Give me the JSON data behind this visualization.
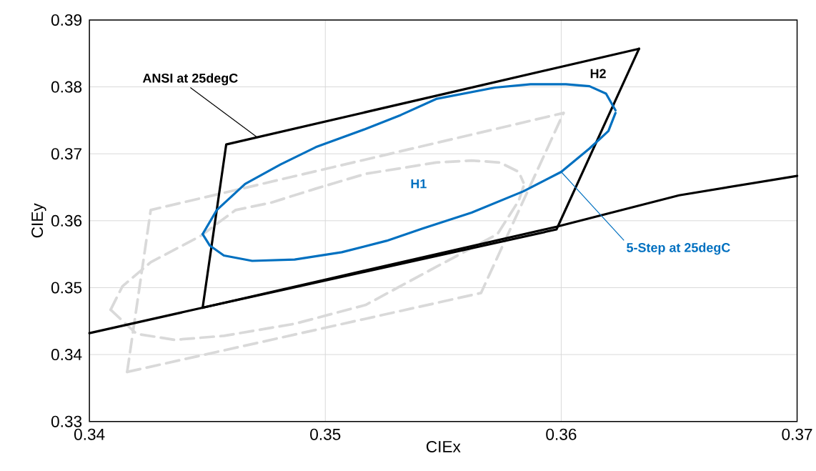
{
  "chart_data": {
    "type": "line",
    "xlabel": "CIEx",
    "ylabel": "CIEy",
    "xlim": [
      0.34,
      0.37
    ],
    "ylim": [
      0.33,
      0.39
    ],
    "xticks": [
      0.34,
      0.35,
      0.36,
      0.37
    ],
    "yticks": [
      0.33,
      0.34,
      0.35,
      0.36,
      0.37,
      0.38,
      0.39
    ],
    "grid": true,
    "series": [
      {
        "color": "#d9d9d9",
        "line_style": "dashed",
        "x": [
          0.3416,
          0.3426,
          0.3601
        ],
        "values": [
          0.3374,
          0.3616,
          0.3761
        ]
      },
      {
        "color": "#d9d9d9",
        "line_style": "dashed",
        "x": [
          0.3416,
          0.3566,
          0.3601
        ],
        "values": [
          0.3374,
          0.3492,
          0.3761
        ]
      },
      {
        "color": "#d9d9d9",
        "line_style": "dashed",
        "x": [
          0.3409,
          0.3414,
          0.3426,
          0.3447,
          0.3462,
          0.3477,
          0.3496,
          0.3517,
          0.3547,
          0.3562,
          0.3574,
          0.3582,
          0.3584
        ],
        "values": [
          0.3467,
          0.3502,
          0.3538,
          0.3577,
          0.3616,
          0.3627,
          0.3648,
          0.367,
          0.3687,
          0.369,
          0.3687,
          0.3673,
          0.3657
        ]
      },
      {
        "color": "#d9d9d9",
        "line_style": "dashed",
        "x": [
          0.3409,
          0.342,
          0.3436,
          0.3457,
          0.3487,
          0.3517,
          0.3547,
          0.3573,
          0.3582,
          0.3584
        ],
        "values": [
          0.3467,
          0.3431,
          0.3422,
          0.3428,
          0.3446,
          0.3474,
          0.3531,
          0.358,
          0.363,
          0.3651
        ]
      },
      {
        "color": "#000000",
        "line_style": "solid",
        "x": [
          0.34,
          0.3448,
          0.35,
          0.3598,
          0.365,
          0.37
        ],
        "values": [
          0.3432,
          0.347,
          0.3512,
          0.3591,
          0.3638,
          0.3667
        ]
      },
      {
        "color": "#000000",
        "line_style": "solid",
        "x": [
          0.3448,
          0.3458,
          0.3633
        ],
        "values": [
          0.347,
          0.3714,
          0.3857
        ]
      },
      {
        "color": "#000000",
        "line_style": "solid",
        "x": [
          0.3448,
          0.3598,
          0.3633
        ],
        "values": [
          0.347,
          0.3587,
          0.3857
        ]
      },
      {
        "color": "#0070c0",
        "line_style": "solid",
        "x": [
          0.3448,
          0.3454,
          0.3466,
          0.3481,
          0.3496,
          0.3517,
          0.3532,
          0.3547,
          0.3572,
          0.3587,
          0.3602,
          0.3612,
          0.3619,
          0.3623
        ],
        "values": [
          0.358,
          0.3616,
          0.3655,
          0.3684,
          0.371,
          0.3737,
          0.3758,
          0.3782,
          0.3799,
          0.3804,
          0.3804,
          0.3801,
          0.379,
          0.3765
        ]
      },
      {
        "color": "#0070c0",
        "line_style": "solid",
        "x": [
          0.3448,
          0.3451,
          0.3457,
          0.3469,
          0.3487,
          0.3507,
          0.3526,
          0.3541,
          0.3562,
          0.3584,
          0.36,
          0.3612,
          0.362,
          0.3623
        ],
        "values": [
          0.358,
          0.3563,
          0.3548,
          0.354,
          0.3542,
          0.3553,
          0.357,
          0.3588,
          0.3612,
          0.3644,
          0.3673,
          0.3708,
          0.3734,
          0.3761
        ]
      }
    ],
    "annotations": [
      {
        "text": "ANSI at 25degC",
        "x": 0.3471,
        "y": 0.3725
      },
      {
        "text": "5-Step at 25degC",
        "x": 0.36,
        "y": 0.3673
      },
      "H1",
      "H2"
    ]
  }
}
